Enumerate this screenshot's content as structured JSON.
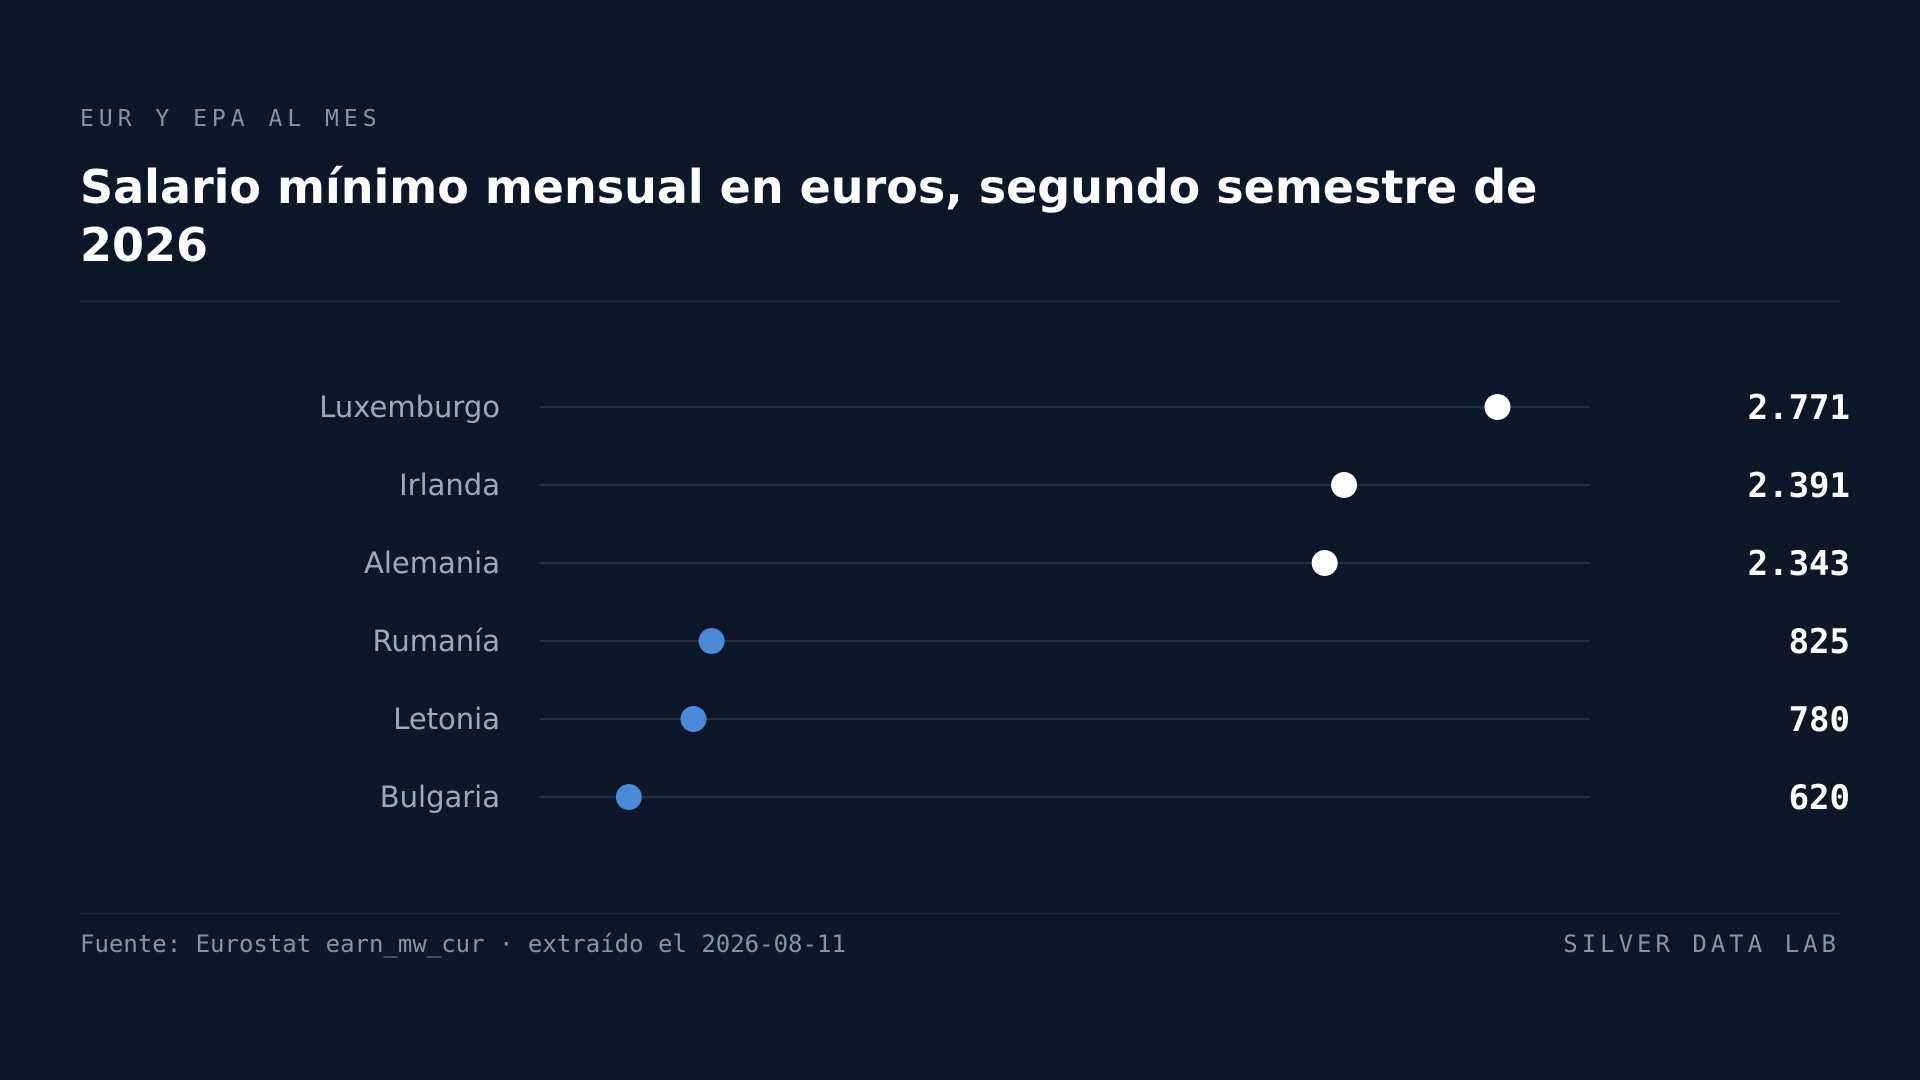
{
  "header": {
    "kicker": "EUR Y EPA AL MES",
    "title": "Salario mínimo mensual en euros, segundo semestre de 2026"
  },
  "chart_data": {
    "type": "scatter",
    "subtype": "dot-plot",
    "categories": [
      "Luxemburgo",
      "Irlanda",
      "Alemania",
      "Rumanía",
      "Letonia",
      "Bulgaria"
    ],
    "values": [
      2771,
      2391,
      2343,
      825,
      780,
      620
    ],
    "value_labels": [
      "2.771",
      "2.391",
      "2.343",
      "825",
      "780",
      "620"
    ],
    "xlim": [
      400,
      3000
    ],
    "grid": false,
    "legend": "none",
    "colors": {
      "high": "#ffffff",
      "low": "#4a8ad8",
      "track": "#1d3148",
      "category_text": "#9aa9bf",
      "value_text": "#ffffff"
    },
    "highlight_threshold": 2000
  },
  "footer": {
    "source": "Fuente: Eurostat earn_mw_cur · extraído el 2026-08-11",
    "brand": "SILVER DATA LAB"
  }
}
